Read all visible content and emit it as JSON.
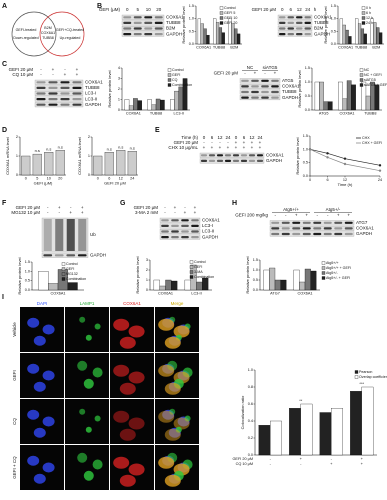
{
  "figure": {
    "A": {
      "label": "A",
      "venn": {
        "left": "GEFI-treated",
        "right": "GEFI+CQ-treated",
        "left_sub": "Down-regulated",
        "right_sub": "Up-regulated",
        "center": [
          "B2M",
          "COX6A1",
          "TUBB8"
        ]
      }
    },
    "B": {
      "label": "B",
      "blots": [
        {
          "header": [
            [
              "GEFI (μM)",
              "0",
              "5",
              "10",
              "20"
            ]
          ],
          "rows": [
            "COX6A1",
            "TUBB8",
            "B2M",
            "GAPDH"
          ]
        },
        {
          "header": [
            [
              "GEFI 20 μM",
              "0",
              "6",
              "12",
              "24"
            ]
          ],
          "unit": "h",
          "rows": [
            "COX6A1",
            "TUBB8",
            "B2M",
            "GAPDH"
          ]
        }
      ],
      "charts": [
        {
          "type": "bar",
          "ylabel": "Relative protein level",
          "categories": [
            "COX6A1",
            "TUBB8",
            "B2M"
          ],
          "series": [
            {
              "name": "Control",
              "color": "#ffffff",
              "values": [
                1,
                1,
                1
              ]
            },
            {
              "name": "GEFI 5",
              "color": "#bbbbbb",
              "values": [
                0.8,
                0.85,
                0.8
              ]
            },
            {
              "name": "GEFI 10",
              "color": "#777777",
              "values": [
                0.6,
                0.65,
                0.6
              ]
            },
            {
              "name": "GEFI 20",
              "color": "#222222",
              "values": [
                0.35,
                0.45,
                0.4
              ]
            }
          ],
          "ylim": [
            0,
            1.5
          ],
          "yticks": [
            {
              "value": 0,
              "label": "0.0"
            },
            0.5,
            {
              "value": 1,
              "label": "1.0"
            },
            1.5
          ]
        },
        {
          "type": "bar",
          "ylabel": "Relative protein level",
          "categories": [
            "COX6A1",
            "TUBB8",
            "B2M"
          ],
          "series": [
            {
              "name": "0 h",
              "color": "#ffffff",
              "values": [
                1,
                1,
                1
              ]
            },
            {
              "name": "6 h",
              "color": "#bbbbbb",
              "values": [
                0.75,
                0.8,
                0.85
              ]
            },
            {
              "name": "12 h",
              "color": "#777777",
              "values": [
                0.55,
                0.6,
                0.65
              ]
            },
            {
              "name": "24 h",
              "color": "#222222",
              "values": [
                0.3,
                0.4,
                0.45
              ]
            }
          ],
          "ylim": [
            0,
            1.5
          ],
          "yticks": [
            {
              "value": 0,
              "label": "0.0"
            },
            0.5,
            {
              "value": 1,
              "label": "1.0"
            },
            1.5
          ]
        }
      ]
    },
    "C": {
      "label": "C",
      "blots": [
        {
          "header": [
            [
              "GEFI 20 μM",
              "-",
              "+",
              "-",
              "+"
            ],
            [
              "CQ 10 μM",
              "-",
              "-",
              "+",
              "+"
            ]
          ],
          "rows": [
            "COX6A1",
            "TUBB8",
            "LC3-I",
            "LC3-II",
            "GAPDH"
          ]
        },
        {
          "groups": [
            "NC",
            "siATG5"
          ],
          "header": [
            [
              "GEFI 20 μM",
              "-",
              "+",
              "-",
              "+"
            ]
          ],
          "rows": [
            "ATG5",
            "COX6A1",
            "TUBB8",
            "GAPDH"
          ]
        }
      ],
      "charts": [
        {
          "type": "bar",
          "ylabel": "Relative protein level",
          "categories": [
            "COX6A1",
            "TUBB8",
            "LC3-II"
          ],
          "series": [
            {
              "name": "Control",
              "color": "#ffffff",
              "values": [
                1,
                1,
                1
              ]
            },
            {
              "name": "GEFI",
              "color": "#bbbbbb",
              "values": [
                0.4,
                0.5,
                1.8
              ]
            },
            {
              "name": "CQ",
              "color": "#777777",
              "values": [
                1.1,
                1.05,
                2.2
              ]
            },
            {
              "name": "Combination",
              "color": "#222222",
              "values": [
                0.9,
                0.95,
                3.0
              ]
            }
          ],
          "ylim": [
            0,
            4
          ],
          "yticks": [
            0,
            1,
            2,
            3,
            4
          ]
        },
        {
          "type": "bar",
          "ylabel": "Relative protein level",
          "categories": [
            "ATG5",
            "COX6A1",
            "TUBB8"
          ],
          "series": [
            {
              "name": "NC",
              "color": "#ffffff",
              "values": [
                1,
                1,
                1
              ]
            },
            {
              "name": "NC + GEFI",
              "color": "#bbbbbb",
              "values": [
                1.0,
                0.4,
                0.5
              ]
            },
            {
              "name": "siATG5",
              "color": "#777777",
              "values": [
                0.3,
                1.05,
                1.0
              ]
            },
            {
              "name": "siATG5 + GEFI",
              "color": "#222222",
              "values": [
                0.3,
                0.9,
                0.9
              ]
            }
          ],
          "ylim": [
            0,
            1.5
          ],
          "yticks": [
            {
              "value": 0,
              "label": "0.0"
            },
            0.5,
            {
              "value": 1,
              "label": "1.0"
            },
            1.5
          ]
        }
      ]
    },
    "D": {
      "label": "D",
      "charts": [
        {
          "type": "bar",
          "ylabel": "COX6A1 mRNA level",
          "xlabel": "GEFI (μM)",
          "categories": [
            "0",
            "5",
            "10",
            "20"
          ],
          "values": [
            1,
            1.1,
            1.2,
            1.3
          ],
          "color": "#cccccc",
          "annotations": [
            null,
            "n.s",
            "n.s",
            "n.s"
          ],
          "ylim": [
            0,
            2
          ],
          "yticks": [
            0,
            1,
            2
          ]
        },
        {
          "type": "bar",
          "ylabel": "COX6A1 mRNA level",
          "xlabel": "GEFI 20 μM",
          "categories": [
            "0",
            "6",
            "12",
            "24"
          ],
          "values": [
            1,
            1.2,
            1.3,
            1.25
          ],
          "color": "#cccccc",
          "annotations": [
            null,
            "n.s",
            "n.s",
            "n.s"
          ],
          "ylim": [
            0,
            2
          ],
          "yticks": [
            0,
            1,
            2
          ]
        }
      ]
    },
    "E": {
      "label": "E",
      "blots": [
        {
          "header": [
            [
              "Time (h)",
              "0",
              "6",
              "12",
              "24",
              "0",
              "6",
              "12",
              "24"
            ],
            [
              "GEFI 20 μM",
              "-",
              "-",
              "-",
              "-",
              "+",
              "+",
              "+",
              "+"
            ],
            [
              "CHX 10 μg/mL",
              "+",
              "+",
              "+",
              "+",
              "+",
              "+",
              "+",
              "+"
            ]
          ],
          "rows": [
            "COX6A1",
            "GAPDH"
          ]
        }
      ],
      "charts": [
        {
          "type": "line",
          "ylabel": "Relative protein level",
          "xlabel": "Time (h)",
          "x": [
            0,
            6,
            12,
            24
          ],
          "series": [
            {
              "name": "CHX",
              "color": "#222222",
              "values": [
                1,
                0.85,
                0.65,
                0.4
              ]
            },
            {
              "name": "CHX + GEFI",
              "color": "#888888",
              "values": [
                1,
                0.7,
                0.45,
                0.2
              ]
            }
          ],
          "xlim": [
            0,
            24
          ],
          "xticks": [
            0,
            6,
            12,
            24
          ],
          "ylim": [
            0,
            1.5
          ],
          "yticks": [
            {
              "value": 0,
              "label": "0.0"
            },
            0.5,
            {
              "value": 1,
              "label": "1.0"
            },
            1.5
          ]
        }
      ]
    },
    "F": {
      "label": "F",
      "blots": [
        {
          "header": [
            [
              "GEFI 20 μM",
              "-",
              "+",
              "-",
              "+"
            ],
            [
              "MG132 10 μM",
              "-",
              "-",
              "+",
              "+"
            ]
          ],
          "tall": true,
          "rows": [
            "Ub",
            "GAPDH"
          ]
        }
      ],
      "charts": [
        {
          "type": "bar",
          "ylabel": "Relative protein level",
          "categories": [
            "COX6A1"
          ],
          "series": [
            {
              "name": "Control",
              "color": "#ffffff",
              "values": [
                1
              ]
            },
            {
              "name": "GEFI",
              "color": "#bbbbbb",
              "values": [
                0.35
              ]
            },
            {
              "name": "MG132",
              "color": "#777777",
              "values": [
                1.1
              ]
            },
            {
              "name": "Combination",
              "color": "#222222",
              "values": [
                0.4
              ]
            }
          ],
          "ylim": [
            0,
            1.5
          ],
          "yticks": [
            {
              "value": 0,
              "label": "0.0"
            },
            0.5,
            {
              "value": 1,
              "label": "1.0"
            },
            1.5
          ]
        }
      ]
    },
    "G": {
      "label": "G",
      "blots": [
        {
          "header": [
            [
              "GEFI 20 μM",
              "-",
              "+",
              "-",
              "+"
            ],
            [
              "3-MA 2 mM",
              "-",
              "-",
              "+",
              "+"
            ]
          ],
          "rows": [
            "COX6A1",
            "LC3-I",
            "LC3-II",
            "GAPDH"
          ]
        }
      ],
      "charts": [
        {
          "type": "bar",
          "ylabel": "Relative protein level",
          "categories": [
            "COX6A1",
            "LC3-II"
          ],
          "series": [
            {
              "name": "Control",
              "color": "#ffffff",
              "values": [
                1,
                1
              ]
            },
            {
              "name": "GEFI",
              "color": "#bbbbbb",
              "values": [
                0.4,
                2.5
              ]
            },
            {
              "name": "3-MA",
              "color": "#777777",
              "values": [
                1.0,
                0.8
              ]
            },
            {
              "name": "Combination",
              "color": "#222222",
              "values": [
                0.9,
                1.2
              ]
            }
          ],
          "ylim": [
            0,
            3
          ],
          "yticks": [
            0,
            1,
            2,
            3
          ]
        }
      ]
    },
    "H": {
      "label": "H",
      "blots": [
        {
          "groups": [
            "Atg5+/+",
            "Atg5+/-"
          ],
          "header": [
            [
              "GEFI 200 mg/kg",
              "-",
              "-",
              "+",
              "+",
              "-",
              "-",
              "+",
              "+"
            ]
          ],
          "rows": [
            "ATG7",
            "COX6A1",
            "GAPDH"
          ]
        }
      ],
      "charts": [
        {
          "type": "bar",
          "ylabel": "Relative protein level",
          "categories": [
            "ATG7",
            "COX6A1"
          ],
          "legend": "right",
          "series": [
            {
              "name": "Atg5+/+",
              "color": "#ffffff",
              "values": [
                1,
                1
              ]
            },
            {
              "name": "Atg5+/+ + GEFI",
              "color": "#bbbbbb",
              "values": [
                1.1,
                0.4
              ]
            },
            {
              "name": "Atg5+/-",
              "color": "#777777",
              "values": [
                0.5,
                1.05
              ]
            },
            {
              "name": "Atg5+/- + GEFI",
              "color": "#222222",
              "values": [
                0.5,
                0.95
              ]
            }
          ],
          "ylim": [
            0,
            1.5
          ],
          "yticks": [
            {
              "value": 0,
              "label": "0.0"
            },
            0.5,
            {
              "value": 1,
              "label": "1.0"
            },
            1.5
          ]
        }
      ]
    },
    "I": {
      "label": "I",
      "columns": [
        "DAPI",
        "LAMP1",
        "COX6A1",
        "Merge"
      ],
      "rows": [
        "Vehicle",
        "GEFI",
        "CQ",
        "GEFI + CQ"
      ],
      "charts": [
        {
          "type": "bar",
          "ylabel": "Colocalization ratio",
          "xrows": [
            {
              "label": "GEFI 20 μM",
              "values": [
                "-",
                "+",
                "-",
                "+"
              ]
            },
            {
              "label": "CQ 10 μM",
              "values": [
                "-",
                "-",
                "+",
                "+"
              ]
            }
          ],
          "series": [
            {
              "name": "Pearson",
              "color": "#222222",
              "values": [
                0.35,
                0.55,
                0.5,
                0.75
              ]
            },
            {
              "name": "Overlap coefficient",
              "color": "#ffffff",
              "values": [
                0.4,
                0.6,
                0.55,
                0.8
              ]
            }
          ],
          "annotations": [
            null,
            "**",
            null,
            "***"
          ],
          "ylim": [
            0,
            1
          ],
          "yticks": [
            {
              "value": 0,
              "label": "0.0"
            },
            0.2,
            0.4,
            0.6,
            0.8,
            {
              "value": 1,
              "label": "1.0"
            }
          ]
        }
      ]
    }
  }
}
